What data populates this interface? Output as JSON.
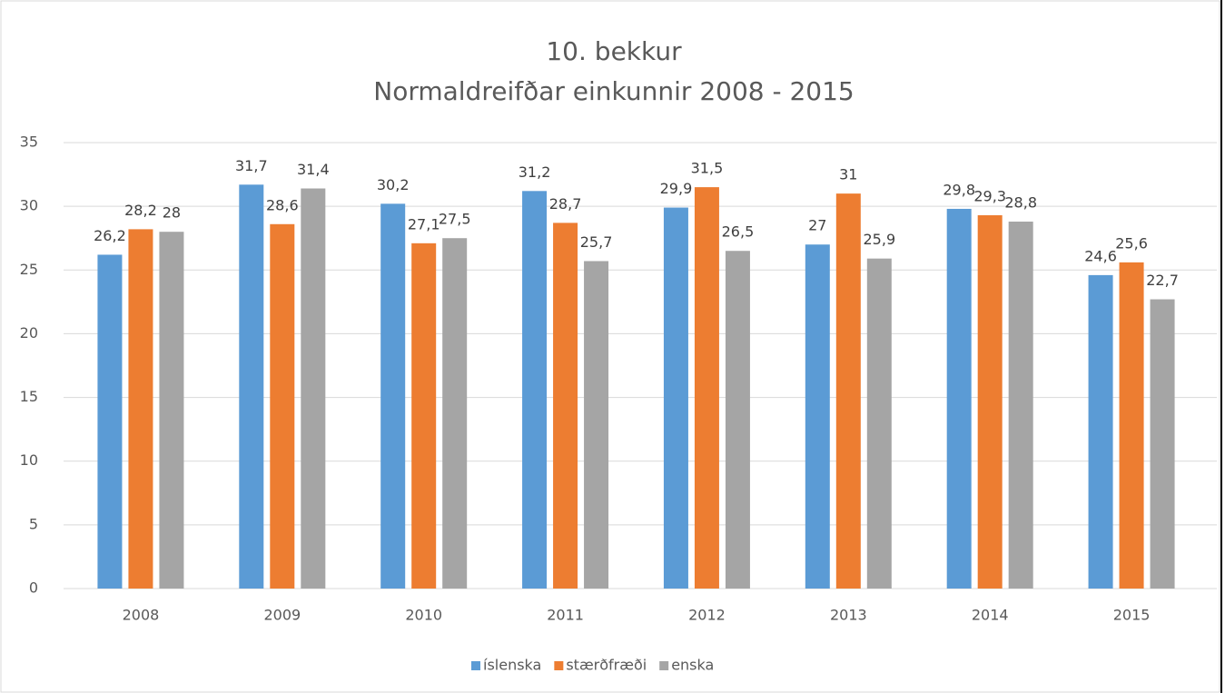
{
  "chart_data": {
    "type": "bar",
    "title": "10. bekkur",
    "subtitle": "Normaldreifðar einkunnir 2008 - 2015",
    "categories": [
      "2008",
      "2009",
      "2010",
      "2011",
      "2012",
      "2013",
      "2014",
      "2015"
    ],
    "series": [
      {
        "name": "íslenska",
        "color": "#5b9bd5",
        "values": [
          26.2,
          31.7,
          30.2,
          31.2,
          29.9,
          27,
          29.8,
          24.6
        ],
        "value_labels": [
          "26,2",
          "31,7",
          "30,2",
          "31,2",
          "29,9",
          "27",
          "29,8",
          "24,6"
        ]
      },
      {
        "name": "stærðfræði",
        "color": "#ed7d31",
        "values": [
          28.2,
          28.6,
          27.1,
          28.7,
          31.5,
          31,
          29.3,
          25.6
        ],
        "value_labels": [
          "28,2",
          "28,6",
          "27,1",
          "28,7",
          "31,5",
          "31",
          "29,3",
          "25,6"
        ]
      },
      {
        "name": "enska",
        "color": "#a5a5a5",
        "values": [
          28,
          31.4,
          27.5,
          25.7,
          26.5,
          25.9,
          28.8,
          22.7
        ],
        "value_labels": [
          "28",
          "31,4",
          "27,5",
          "25,7",
          "26,5",
          "25,9",
          "28,8",
          "22,7"
        ]
      }
    ],
    "ylim": [
      0,
      35
    ],
    "yticks": [
      0,
      5,
      10,
      15,
      20,
      25,
      30,
      35
    ],
    "grid": true,
    "legend": "bottom"
  }
}
